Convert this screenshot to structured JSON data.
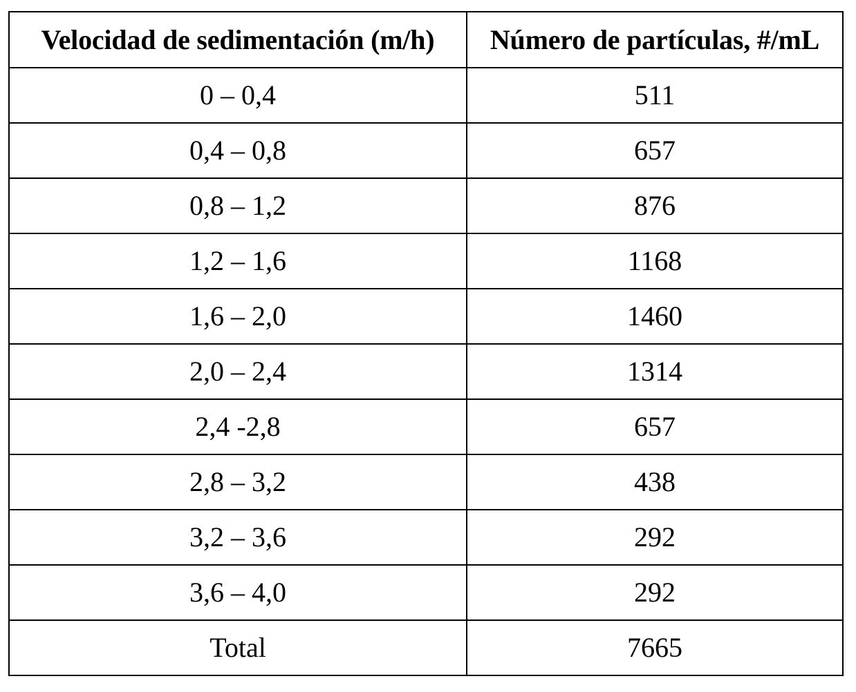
{
  "table": {
    "headers": [
      "Velocidad de sedimentación (m/h)",
      "Número de partículas, #/mL"
    ],
    "rows": [
      [
        "0 – 0,4",
        "511"
      ],
      [
        "0,4 – 0,8",
        "657"
      ],
      [
        "0,8 – 1,2",
        "876"
      ],
      [
        "1,2 – 1,6",
        "1168"
      ],
      [
        "1,6 – 2,0",
        "1460"
      ],
      [
        "2,0 – 2,4",
        "1314"
      ],
      [
        "2,4 -2,8",
        "657"
      ],
      [
        "2,8 – 3,2",
        "438"
      ],
      [
        "3,2 – 3,6",
        "292"
      ],
      [
        "3,6 – 4,0",
        "292"
      ],
      [
        "Total",
        "7665"
      ]
    ]
  }
}
